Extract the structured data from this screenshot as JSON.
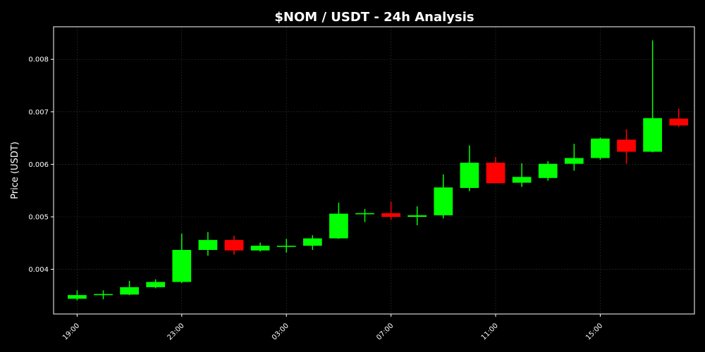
{
  "chart_data": {
    "type": "candlestick",
    "title": "$NOM / USDT - 24h Analysis",
    "ylabel": "Price (USDT)",
    "xlabel": "",
    "ylim": [
      0.00315,
      0.00862
    ],
    "xlim": [
      18.1,
      42.6
    ],
    "grid": true,
    "colors": {
      "background": "#000000",
      "up": "#00ff00",
      "down": "#ff0000",
      "grid": "#333333",
      "frame": "#ffffff"
    },
    "x_ticks": [
      {
        "x": 19,
        "label": "19:00"
      },
      {
        "x": 23,
        "label": "23:00"
      },
      {
        "x": 27,
        "label": "03:00"
      },
      {
        "x": 31,
        "label": "07:00"
      },
      {
        "x": 35,
        "label": "11:00"
      },
      {
        "x": 39,
        "label": "15:00"
      }
    ],
    "y_ticks": [
      {
        "y": 0.004,
        "label": "0.004"
      },
      {
        "y": 0.005,
        "label": "0.005"
      },
      {
        "y": 0.006,
        "label": "0.006"
      },
      {
        "y": 0.007,
        "label": "0.007"
      },
      {
        "y": 0.008,
        "label": "0.008"
      }
    ],
    "candles": [
      {
        "x": 19,
        "open": 0.00344,
        "high": 0.0036,
        "low": 0.00341,
        "close": 0.00351
      },
      {
        "x": 20,
        "open": 0.00351,
        "high": 0.0036,
        "low": 0.00343,
        "close": 0.00353
      },
      {
        "x": 21,
        "open": 0.00352,
        "high": 0.00378,
        "low": 0.00351,
        "close": 0.00366
      },
      {
        "x": 22,
        "open": 0.00366,
        "high": 0.00381,
        "low": 0.00364,
        "close": 0.00376
      },
      {
        "x": 23,
        "open": 0.00376,
        "high": 0.00468,
        "low": 0.00374,
        "close": 0.00437
      },
      {
        "x": 24,
        "open": 0.00437,
        "high": 0.00471,
        "low": 0.00426,
        "close": 0.00456
      },
      {
        "x": 25,
        "open": 0.00456,
        "high": 0.00464,
        "low": 0.00428,
        "close": 0.00436
      },
      {
        "x": 26,
        "open": 0.00436,
        "high": 0.00451,
        "low": 0.00434,
        "close": 0.00445
      },
      {
        "x": 27,
        "open": 0.00444,
        "high": 0.00458,
        "low": 0.00432,
        "close": 0.00445
      },
      {
        "x": 28,
        "open": 0.00445,
        "high": 0.00465,
        "low": 0.00437,
        "close": 0.00459
      },
      {
        "x": 29,
        "open": 0.00459,
        "high": 0.00527,
        "low": 0.00458,
        "close": 0.00506
      },
      {
        "x": 30,
        "open": 0.00505,
        "high": 0.00515,
        "low": 0.0049,
        "close": 0.00507
      },
      {
        "x": 31,
        "open": 0.00507,
        "high": 0.00529,
        "low": 0.00494,
        "close": 0.005
      },
      {
        "x": 32,
        "open": 0.005,
        "high": 0.0052,
        "low": 0.00484,
        "close": 0.00503
      },
      {
        "x": 33,
        "open": 0.00503,
        "high": 0.00581,
        "low": 0.00497,
        "close": 0.00556
      },
      {
        "x": 34,
        "open": 0.00555,
        "high": 0.00636,
        "low": 0.00549,
        "close": 0.00603
      },
      {
        "x": 35,
        "open": 0.00603,
        "high": 0.00614,
        "low": 0.00564,
        "close": 0.00564
      },
      {
        "x": 36,
        "open": 0.00565,
        "high": 0.00602,
        "low": 0.00557,
        "close": 0.00576
      },
      {
        "x": 37,
        "open": 0.00574,
        "high": 0.00606,
        "low": 0.00569,
        "close": 0.00601
      },
      {
        "x": 38,
        "open": 0.00601,
        "high": 0.00639,
        "low": 0.00588,
        "close": 0.00612
      },
      {
        "x": 39,
        "open": 0.00612,
        "high": 0.00651,
        "low": 0.00609,
        "close": 0.00649
      },
      {
        "x": 40,
        "open": 0.00647,
        "high": 0.00667,
        "low": 0.00601,
        "close": 0.00624
      },
      {
        "x": 41,
        "open": 0.00624,
        "high": 0.00836,
        "low": 0.00623,
        "close": 0.00688
      },
      {
        "x": 42,
        "open": 0.00687,
        "high": 0.00706,
        "low": 0.00671,
        "close": 0.00674
      }
    ]
  }
}
